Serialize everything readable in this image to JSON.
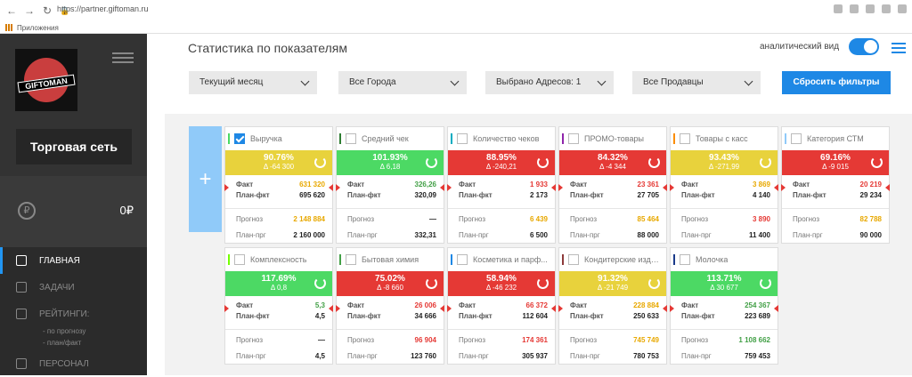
{
  "browser": {
    "url": "https://partner.giftoman.ru",
    "bookmarks_label": "Приложения"
  },
  "sidebar": {
    "network_name": "Торговая сеть",
    "balance": "0₽",
    "logo_text": "GIFTOMAN",
    "items": [
      {
        "label": "ГЛАВНАЯ",
        "icon": "chart-icon",
        "active": true
      },
      {
        "label": "ЗАДАЧИ",
        "icon": "tasks-icon",
        "active": false
      },
      {
        "label": "РЕЙТИНГИ:",
        "icon": "rating-icon",
        "active": false
      },
      {
        "label": "- по прогнозу",
        "sub": true
      },
      {
        "label": "- план/факт",
        "sub": true
      },
      {
        "label": "ПЕРСОНАЛ",
        "icon": "clock-icon",
        "active": false
      }
    ]
  },
  "header": {
    "title": "Статистика по показателям",
    "analytic_label": "аналитический вид",
    "analytic_on": true
  },
  "filters": [
    {
      "label": "Текущий месяц"
    },
    {
      "label": "Все Города"
    },
    {
      "label": "Выбрано Адресов: 1"
    },
    {
      "label": "Все Продавцы"
    }
  ],
  "reset_label": "Сбросить фильтры",
  "colors": {
    "green": "#4cd964",
    "red": "#e53935",
    "yellow": "#e8d23c",
    "blue": "#1e88e5"
  },
  "labels": {
    "fact": "Факт",
    "plan_fact": "План-фкт",
    "forecast": "Прогноз",
    "plan_forecast": "План-прг"
  },
  "cards": [
    {
      "title": "Выручка",
      "checked": true,
      "bar": "#4cd964",
      "status": "yellow",
      "pct": "90.76%",
      "delta": "Δ -64 300",
      "fact": "631 320",
      "fact_color": "#e8a800",
      "plan_fact": "695 620",
      "forecast": "2 148 884",
      "forecast_color": "#e8a800",
      "plan_forecast": "2 160 000"
    },
    {
      "title": "Средний чек",
      "checked": false,
      "bar": "#2e7d32",
      "status": "green",
      "pct": "101.93%",
      "delta": "Δ 6,18",
      "fact": "326,26",
      "fact_color": "#43a047",
      "plan_fact": "320,09",
      "forecast": "—",
      "forecast_color": "#222",
      "plan_forecast": "332,31"
    },
    {
      "title": "Количество чеков",
      "checked": false,
      "bar": "#00acc1",
      "status": "red",
      "pct": "88.95%",
      "delta": "Δ -240,21",
      "fact": "1 933",
      "fact_color": "#e53935",
      "plan_fact": "2 173",
      "forecast": "6 439",
      "forecast_color": "#e8a800",
      "plan_forecast": "6 500"
    },
    {
      "title": "ПРОМО-товары",
      "checked": false,
      "bar": "#8e24aa",
      "status": "red",
      "pct": "84.32%",
      "delta": "Δ -4 344",
      "fact": "23 361",
      "fact_color": "#e53935",
      "plan_fact": "27 705",
      "forecast": "85 464",
      "forecast_color": "#e8a800",
      "plan_forecast": "88 000"
    },
    {
      "title": "Товары с касс",
      "checked": false,
      "bar": "#fb8c00",
      "status": "yellow",
      "pct": "93.43%",
      "delta": "Δ -271,99",
      "fact": "3 869",
      "fact_color": "#e8a800",
      "plan_fact": "4 140",
      "forecast": "3 890",
      "forecast_color": "#e53935",
      "plan_forecast": "11 400"
    },
    {
      "title": "Категория СТМ",
      "checked": false,
      "bar": "#90caf9",
      "status": "red",
      "pct": "69.16%",
      "delta": "Δ -9 015",
      "fact": "20 219",
      "fact_color": "#e53935",
      "plan_fact": "29 234",
      "forecast": "82 788",
      "forecast_color": "#e8a800",
      "plan_forecast": "90 000"
    },
    {
      "title": "Комплексность",
      "checked": false,
      "bar": "#76ff03",
      "status": "green",
      "pct": "117.69%",
      "delta": "Δ 0,8",
      "fact": "5,3",
      "fact_color": "#43a047",
      "plan_fact": "4,5",
      "forecast": "—",
      "forecast_color": "#222",
      "plan_forecast": "4,5"
    },
    {
      "title": "Бытовая химия",
      "checked": false,
      "bar": "#43a047",
      "status": "red",
      "pct": "75.02%",
      "delta": "Δ -8 660",
      "fact": "26 006",
      "fact_color": "#e53935",
      "plan_fact": "34 666",
      "forecast": "96 904",
      "forecast_color": "#e53935",
      "plan_forecast": "123 760"
    },
    {
      "title": "Косметика и парф...",
      "checked": false,
      "bar": "#1e88e5",
      "status": "red",
      "pct": "58.94%",
      "delta": "Δ -46 232",
      "fact": "66 372",
      "fact_color": "#e53935",
      "plan_fact": "112 604",
      "forecast": "174 361",
      "forecast_color": "#e53935",
      "plan_forecast": "305 937"
    },
    {
      "title": "Кондитерские изде...",
      "checked": false,
      "bar": "#8d3a3a",
      "status": "yellow",
      "pct": "91.32%",
      "delta": "Δ -21 749",
      "fact": "228 884",
      "fact_color": "#e8a800",
      "plan_fact": "250 633",
      "forecast": "745 749",
      "forecast_color": "#e8a800",
      "plan_forecast": "780 753"
    },
    {
      "title": "Молочка",
      "checked": false,
      "bar": "#1a3a8a",
      "status": "green",
      "pct": "113.71%",
      "delta": "Δ 30 677",
      "fact": "254 367",
      "fact_color": "#43a047",
      "plan_fact": "223 689",
      "forecast": "1 108 662",
      "forecast_color": "#43a047",
      "plan_forecast": "759 453"
    }
  ]
}
